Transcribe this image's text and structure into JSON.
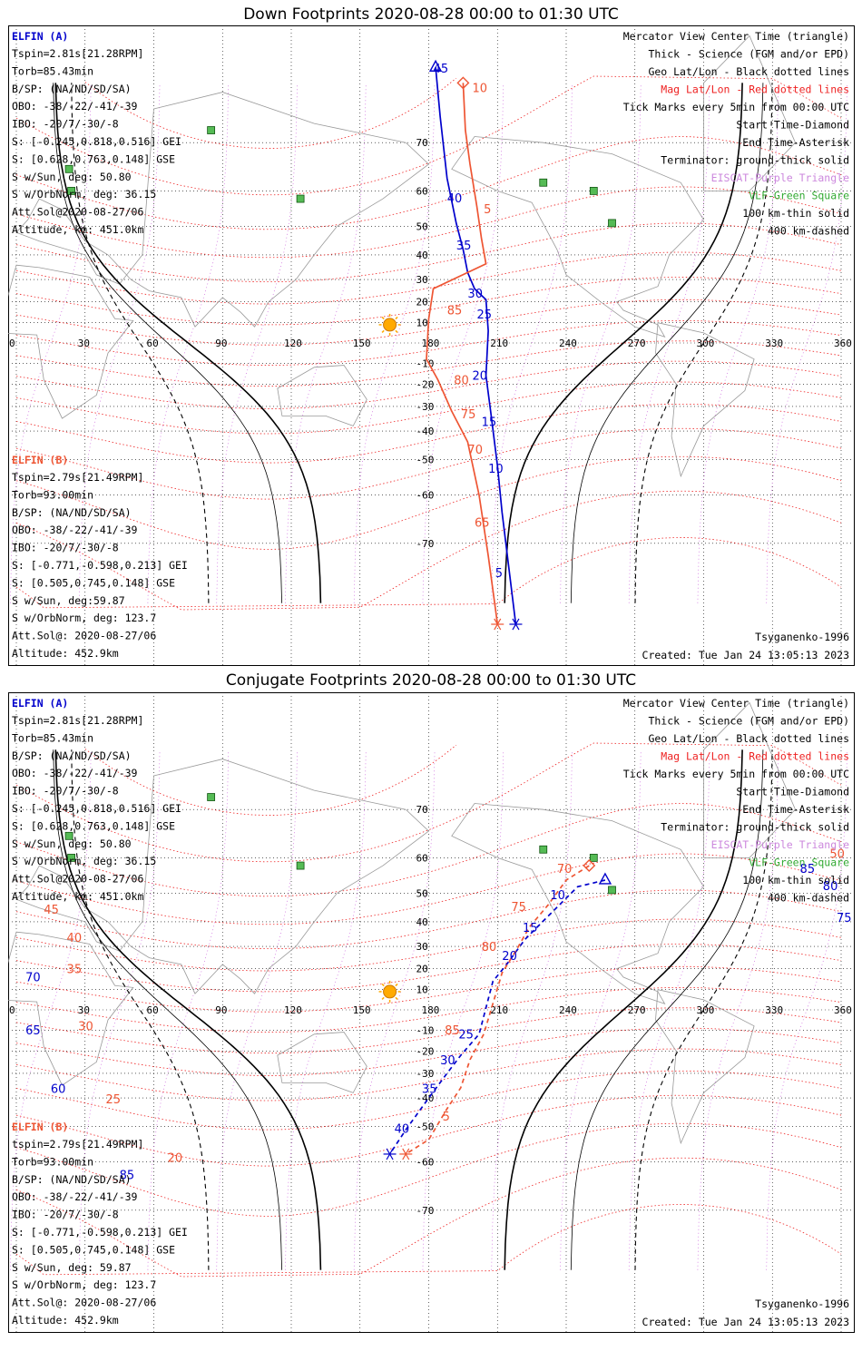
{
  "panels": [
    {
      "title": "Down Footprints 2020-08-28 00:00 to 01:30 UTC",
      "sat_a": {
        "name": "ELFIN (A)",
        "lines": [
          "Tspin=2.81s[21.28RPM]",
          "Torb=85.43min",
          "B/SP: (NA/ND/SD/SA)",
          "OBO: -38/-22/-41/-39",
          "IBO: -20/7/-30/-8",
          "S: [-0.245,0.818,0.516] GEI",
          "S: [0.628,0.763,0.148] GSE",
          "S w/Sun, deg: 50.80",
          "S w/OrbNorm, deg: 36.15",
          "Att.Sol@2020-08-27/06",
          "Altitude, km: 451.0km"
        ]
      },
      "sat_b": {
        "name": "ELFIN (B)",
        "lines": [
          "Tspin=2.79s[21.49RPM]",
          "Torb=93.00min",
          "B/SP: (NA/ND/SD/SA)",
          "OBO: -38/-22/-41/-39",
          "IBO: -20/7/-30/-8",
          "S: [-0.771,-0.598,0.213] GEI",
          "S: [0.505,0.745,0.148] GSE",
          "S w/Sun, deg:59.87",
          "S w/OrbNorm, deg: 123.7",
          "Att.Sol@: 2020-08-27/06",
          "Altitude: 452.9km"
        ]
      },
      "model": "Tsyganenko-1996",
      "created": "Created: Tue Jan 24 13:05:13 2023"
    },
    {
      "title": "Conjugate Footprints 2020-08-28 00:00 to 01:30 UTC",
      "sat_a": {
        "name": "ELFIN (A)",
        "lines": [
          "Tspin=2.81s[21.28RPM]",
          "Torb=85.43min",
          "B/SP: (NA/ND/SD/SA)",
          "OBO: -38/-22/-41/-39",
          "IBO: -20/7/-30/-8",
          "S: [-0.245,0.818,0.516] GEI",
          "S: [0.628,0.763,0.148] GSE",
          "S w/Sun, deg: 50.80",
          "S w/OrbNorm, deg: 36.15",
          "Att.Sol@2020-08-27/06",
          "Altitude, km: 451.0km"
        ]
      },
      "sat_b": {
        "name": "ELFIN (B)",
        "lines": [
          "tspin=2.79s[21.49RPM]",
          "Torb=93.00min",
          "B/SP: (NA/ND/SD/SA)",
          "OBO: -38/-22/-41/-39",
          "IBO: -20/7/-30/-8",
          "S: [-0.771,-0.598,0.213] GEI",
          "S: [0.505,0.745,0.148] GSE",
          "S w/Sun, deg: 59.87",
          "S w/OrbNorm, deg: 123.7",
          "Att.Sol@: 2020-08-27/06",
          "Altitude: 452.9km"
        ]
      },
      "model": "Tsyganenko-1996",
      "created": "Created: Tue Jan 24 13:05:13 2023"
    }
  ],
  "legend": [
    {
      "text": "Mercator View Center Time (triangle)",
      "color": "#000000"
    },
    {
      "text": "Thick - Science (FGM and/or EPD)",
      "color": "#000000"
    },
    {
      "text": "Geo Lat/Lon - Black dotted lines",
      "color": "#000000"
    },
    {
      "text": "Mag Lat/Lon - Red dotted lines",
      "color": "#ee2222"
    },
    {
      "text": "Tick Marks every 5min from 00:00 UTC",
      "color": "#000000"
    },
    {
      "text": "Start Time-Diamond",
      "color": "#000000"
    },
    {
      "text": "End Time-Asterisk",
      "color": "#000000"
    },
    {
      "text": "Terminator: ground-thick solid",
      "color": "#000000"
    },
    {
      "text": "EISCAT-Purple Triangle",
      "color": "#cc88dd"
    },
    {
      "text": "VLF-Green Square",
      "color": "#33aa33"
    },
    {
      "text": "100 km-thin solid",
      "color": "#000000"
    },
    {
      "text": "400 km-dashed",
      "color": "#000000"
    }
  ],
  "chart_data": [
    {
      "type": "line",
      "title": "Down Footprints 2020-08-28 00:00 to 01:30 UTC",
      "xlabel": "",
      "ylabel": "",
      "xlim": [
        0,
        360
      ],
      "ylim": [
        -80,
        80
      ],
      "x_ticks": [
        0,
        30,
        60,
        90,
        120,
        150,
        180,
        210,
        240,
        270,
        300,
        330,
        360
      ],
      "y_ticks": [
        70,
        60,
        50,
        40,
        30,
        20,
        10,
        -10,
        -20,
        -30,
        -40,
        -50,
        -60,
        -70
      ],
      "series": [
        {
          "name": "ELFIN (A)",
          "color": "#0000cc",
          "points": [
            [
              183,
              79.5
            ],
            [
              185,
              74
            ],
            [
              188,
              63
            ],
            [
              192,
              51
            ],
            [
              195,
              42
            ],
            [
              197,
              33
            ],
            [
              200,
              26
            ],
            [
              205,
              21
            ],
            [
              206,
              6
            ],
            [
              205,
              -16
            ],
            [
              207,
              -32
            ],
            [
              210,
              -52
            ],
            [
              212,
              -64
            ],
            [
              218,
              -80
            ]
          ]
        },
        {
          "name": "ELFIN (B)",
          "color": "#ee5533",
          "points": [
            [
              195,
              78
            ],
            [
              196,
              72
            ],
            [
              198,
              66
            ],
            [
              201,
              56
            ],
            [
              203,
              46
            ],
            [
              205,
              36.5
            ],
            [
              182,
              26
            ],
            [
              180,
              12
            ],
            [
              179,
              -8
            ],
            [
              184,
              -18
            ],
            [
              190,
              -32
            ],
            [
              197,
              -44
            ],
            [
              202,
              -60
            ],
            [
              206,
              -72
            ],
            [
              210,
              -80
            ]
          ]
        }
      ],
      "tick_labels_a": [
        {
          "t": "45",
          "lon": 182,
          "lat": 79
        },
        {
          "t": "40",
          "lon": 188,
          "lat": 57
        },
        {
          "t": "35",
          "lon": 192,
          "lat": 42
        },
        {
          "t": "30",
          "lon": 197,
          "lat": 22
        },
        {
          "t": "25",
          "lon": 201,
          "lat": 12
        },
        {
          "t": "20",
          "lon": 199,
          "lat": -18
        },
        {
          "t": "15",
          "lon": 203,
          "lat": -38
        },
        {
          "t": "10",
          "lon": 206,
          "lat": -54
        },
        {
          "t": "5",
          "lon": 209,
          "lat": -75
        }
      ],
      "tick_labels_b": [
        {
          "t": "10",
          "lon": 199,
          "lat": 77
        },
        {
          "t": "5",
          "lon": 204,
          "lat": 54
        },
        {
          "t": "85",
          "lon": 188,
          "lat": 14
        },
        {
          "t": "80",
          "lon": 191,
          "lat": -20
        },
        {
          "t": "75",
          "lon": 194,
          "lat": -35
        },
        {
          "t": "70",
          "lon": 197,
          "lat": -48
        },
        {
          "t": "65",
          "lon": 200,
          "lat": -67
        }
      ]
    },
    {
      "type": "line",
      "title": "Conjugate Footprints 2020-08-28 00:00 to 01:30 UTC",
      "xlabel": "",
      "ylabel": "",
      "xlim": [
        0,
        360
      ],
      "ylim": [
        -80,
        80
      ],
      "x_ticks": [
        0,
        30,
        60,
        90,
        120,
        150,
        180,
        210,
        240,
        270,
        300,
        330,
        360
      ],
      "y_ticks": [
        70,
        60,
        50,
        40,
        30,
        20,
        10,
        -10,
        -20,
        -30,
        -40,
        -50,
        -60,
        -70
      ],
      "series": [
        {
          "name": "ELFIN (A)",
          "color": "#0000cc",
          "points": [
            [
              257,
              54
            ],
            [
              245,
              52
            ],
            [
              232,
              42
            ],
            [
              222,
              33
            ],
            [
              214,
              22
            ],
            [
              208,
              14
            ],
            [
              202,
              -12
            ],
            [
              194,
              -22
            ],
            [
              188,
              -30
            ],
            [
              180,
              -40
            ],
            [
              170,
              -51
            ],
            [
              163,
              -58
            ]
          ]
        },
        {
          "name": "ELFIN (B)",
          "color": "#ee5533",
          "points": [
            [
              250,
              58
            ],
            [
              240,
              54
            ],
            [
              232,
              46
            ],
            [
              224,
              38
            ],
            [
              218,
              28
            ],
            [
              212,
              18
            ],
            [
              204,
              -12
            ],
            [
              198,
              -24
            ],
            [
              194,
              -36
            ],
            [
              188,
              -44
            ],
            [
              180,
              -54
            ],
            [
              170,
              -58
            ]
          ]
        }
      ],
      "tick_labels_a": [
        {
          "t": "10",
          "lon": 233,
          "lat": 48
        },
        {
          "t": "15",
          "lon": 221,
          "lat": 36
        },
        {
          "t": "20",
          "lon": 212,
          "lat": 24
        },
        {
          "t": "25",
          "lon": 193,
          "lat": -14
        },
        {
          "t": "30",
          "lon": 185,
          "lat": -26
        },
        {
          "t": "35",
          "lon": 177,
          "lat": -38
        },
        {
          "t": "40",
          "lon": 165,
          "lat": -52
        },
        {
          "t": "65",
          "lon": 4,
          "lat": -12
        },
        {
          "t": "60",
          "lon": 15,
          "lat": -38
        },
        {
          "t": "70",
          "lon": 4,
          "lat": 14
        },
        {
          "t": "85",
          "lon": 45,
          "lat": -64
        },
        {
          "t": "80",
          "lon": 352,
          "lat": 51
        },
        {
          "t": "85",
          "lon": 342,
          "lat": 56
        },
        {
          "t": "75",
          "lon": 358,
          "lat": 40
        }
      ],
      "tick_labels_b": [
        {
          "t": "70",
          "lon": 236,
          "lat": 56
        },
        {
          "t": "75",
          "lon": 216,
          "lat": 44
        },
        {
          "t": "80",
          "lon": 203,
          "lat": 28
        },
        {
          "t": "85",
          "lon": 187,
          "lat": -12
        },
        {
          "t": "5",
          "lon": 186,
          "lat": -48
        },
        {
          "t": "40",
          "lon": 22,
          "lat": 32
        },
        {
          "t": "35",
          "lon": 22,
          "lat": 18
        },
        {
          "t": "30",
          "lon": 27,
          "lat": -10
        },
        {
          "t": "25",
          "lon": 39,
          "lat": -42
        },
        {
          "t": "20",
          "lon": 66,
          "lat": -60
        },
        {
          "t": "50",
          "lon": 355,
          "lat": 60
        },
        {
          "t": "45",
          "lon": 12,
          "lat": 43
        }
      ]
    }
  ]
}
